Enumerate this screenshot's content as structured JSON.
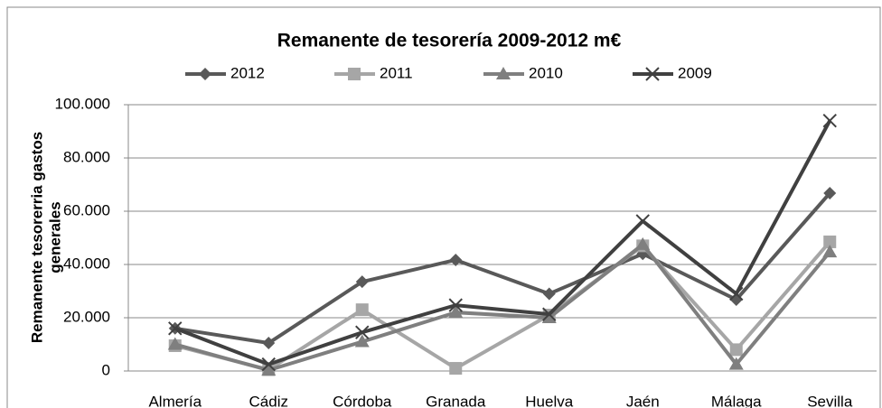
{
  "chart_data": {
    "type": "line",
    "title": "Remanente de tesorería 2009-2012 m€",
    "y_label": [
      "Remanente tesorerria gastos",
      "generales"
    ],
    "categories": [
      "Almería",
      "Cádiz",
      "Córdoba",
      "Granada",
      "Huelva",
      "Jaén",
      "Málaga",
      "Sevilla"
    ],
    "series": [
      {
        "name": "2012",
        "color": "#595959",
        "marker": "diamond",
        "values": [
          16000,
          10500,
          33500,
          41700,
          29000,
          44000,
          26800,
          66800
        ]
      },
      {
        "name": "2011",
        "color": "#a6a6a6",
        "marker": "square",
        "values": [
          9500,
          500,
          23000,
          1000,
          21000,
          47000,
          8000,
          48500
        ]
      },
      {
        "name": "2010",
        "color": "#7f7f7f",
        "marker": "triangle",
        "values": [
          10000,
          300,
          11000,
          22000,
          20000,
          47500,
          2500,
          44700
        ]
      },
      {
        "name": "2009",
        "color": "#404040",
        "marker": "x",
        "values": [
          16000,
          2500,
          14500,
          24700,
          21300,
          56300,
          29000,
          94000
        ]
      }
    ],
    "ylim": [
      0,
      100000
    ],
    "yticks": [
      {
        "value": 0,
        "label": "0"
      },
      {
        "value": 20000,
        "label": "20.000"
      },
      {
        "value": 40000,
        "label": "40.000"
      },
      {
        "value": 60000,
        "label": "60.000"
      },
      {
        "value": 80000,
        "label": "80.000"
      },
      {
        "value": 100000,
        "label": "100.000"
      }
    ],
    "grid": true,
    "legend": "top"
  }
}
